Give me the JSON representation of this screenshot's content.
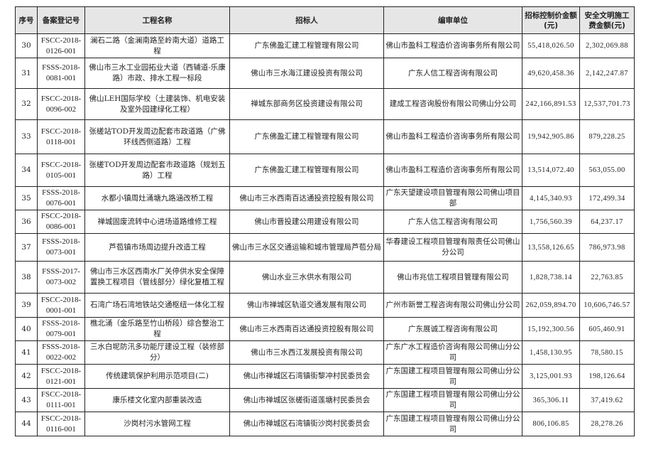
{
  "table": {
    "headers": [
      "序号",
      "备案登记号",
      "工程名称",
      "招标人",
      "编审单位",
      "招标控制价金额(元)",
      "安全文明施工费金额(元)"
    ],
    "rows": [
      [
        "30",
        "FSCC-2018-0126-001",
        "澜石二路（金澜南路至岭南大道）道路工程",
        "广东佛盈汇建工程管理有限公司",
        "佛山市盈科工程造价咨询事务所有限公司",
        "55,418,026.50",
        "2,302,069.88"
      ],
      [
        "31",
        "FSSS-2018-0081-001",
        "佛山市三水工业园拓业大道（西辅道-乐康路）市政、排水工程一标段",
        "佛山市三水海江建设投资有限公司",
        "广东人信工程咨询有限公司",
        "49,620,458.36",
        "2,142,247.87"
      ],
      [
        "32",
        "FSCC-2018-0096-002",
        "佛山LEH国际学校（土建装饰、机电安装及室外园建绿化工程）",
        "禅城东部商务区投资建设有限公司",
        "建成工程咨询股份有限公司佛山分公司",
        "242,166,891.53",
        "12,537,701.73"
      ],
      [
        "33",
        "FSCC-2018-0118-001",
        "张槎站TOD开发周边配套市政道路（广佛环线西侧道路）工程",
        "广东佛盈汇建工程管理有限公司",
        "佛山市盈科工程造价咨询事务所有限公司",
        "19,942,905.86",
        "879,228.25"
      ],
      [
        "34",
        "FSCC-2018-0105-001",
        "张槎TOD开发周边配套市政道路（规划五路）工程",
        "广东佛盈汇建工程管理有限公司",
        "佛山市盈科工程造价咨询事务所有限公司",
        "13,514,072.40",
        "563,055.00"
      ],
      [
        "35",
        "FSSS-2018-0076-001",
        "水都小镇周灶涌塘九路涵改桥工程",
        "佛山市三水西南百达通投资控股有限公司",
        "广东天望建设项目管理有限公司佛山项目部",
        "4,145,340.93",
        "172,499.34"
      ],
      [
        "36",
        "FSCC-2018-0086-001",
        "禅城固废流转中心进场道路维修工程",
        "佛山市晋投建公用建设有限公司",
        "广东人信工程咨询有限公司",
        "1,756,560.39",
        "64,237.17"
      ],
      [
        "37",
        "FSSS-2018-0073-001",
        "芦苞镇市场周边提升改造工程",
        "佛山市三水区交通运输和城市管理局芦苞分局",
        "华春建设工程项目管理有限责任公司佛山分公司",
        "13,558,126.65",
        "786,973.98"
      ],
      [
        "38",
        "FSSS-2017-0073-002",
        "佛山市三水区西南水厂关停供水安全保障置换工程项目（管线部分）绿化复植工程",
        "佛山水业三水供水有限公司",
        "佛山市兆信工程项目管理有限公司",
        "1,828,738.14",
        "22,763.85"
      ],
      [
        "39",
        "FSCC-2018-0001-001",
        "石湾广场石湾地铁站交通枢纽一体化工程",
        "佛山市禅城区轨道交通发展有限公司",
        "广州市新誉工程咨询有限公司佛山分公司",
        "262,059,894.70",
        "10,606,746.57"
      ],
      [
        "40",
        "FSSS-2018-0079-001",
        "樵北涌（金乐路至竹山桥段）综合整治工程",
        "佛山市三水西南百达通投资控股有限公司",
        "广东展诚工程咨询有限公司",
        "15,192,300.56",
        "605,460.91"
      ],
      [
        "41",
        "FSSS-2018-0022-002",
        "三水白坭防汛多功能厅建设工程（装修部分）",
        "佛山市三水西江发展投资有限公司",
        "广东广水工程造价咨询有限公司佛山分公司",
        "1,458,130.95",
        "78,580.15"
      ],
      [
        "42",
        "FSCC-2018-0121-001",
        "传统建筑保护利用示范项目(二)",
        "佛山市禅城区石湾镇街黎冲村民委员会",
        "广东国建工程项目管理有限公司佛山分公司",
        "3,125,001.93",
        "198,126.64"
      ],
      [
        "43",
        "FSCC-2018-0111-001",
        "康乐楼文化室内部重装改造",
        "佛山市禅城区张槎街道莲塘村民委员会",
        "广东国建工程项目管理有限公司佛山分公司",
        "365,306.11",
        "37,419.62"
      ],
      [
        "44",
        "FSCC-2018-0116-001",
        "沙岗村污水管网工程",
        "佛山市禅城区石湾镇街沙岗村民委员会",
        "广东国建工程项目管理有限公司佛山分公司",
        "806,106.85",
        "28,278.26"
      ]
    ]
  }
}
